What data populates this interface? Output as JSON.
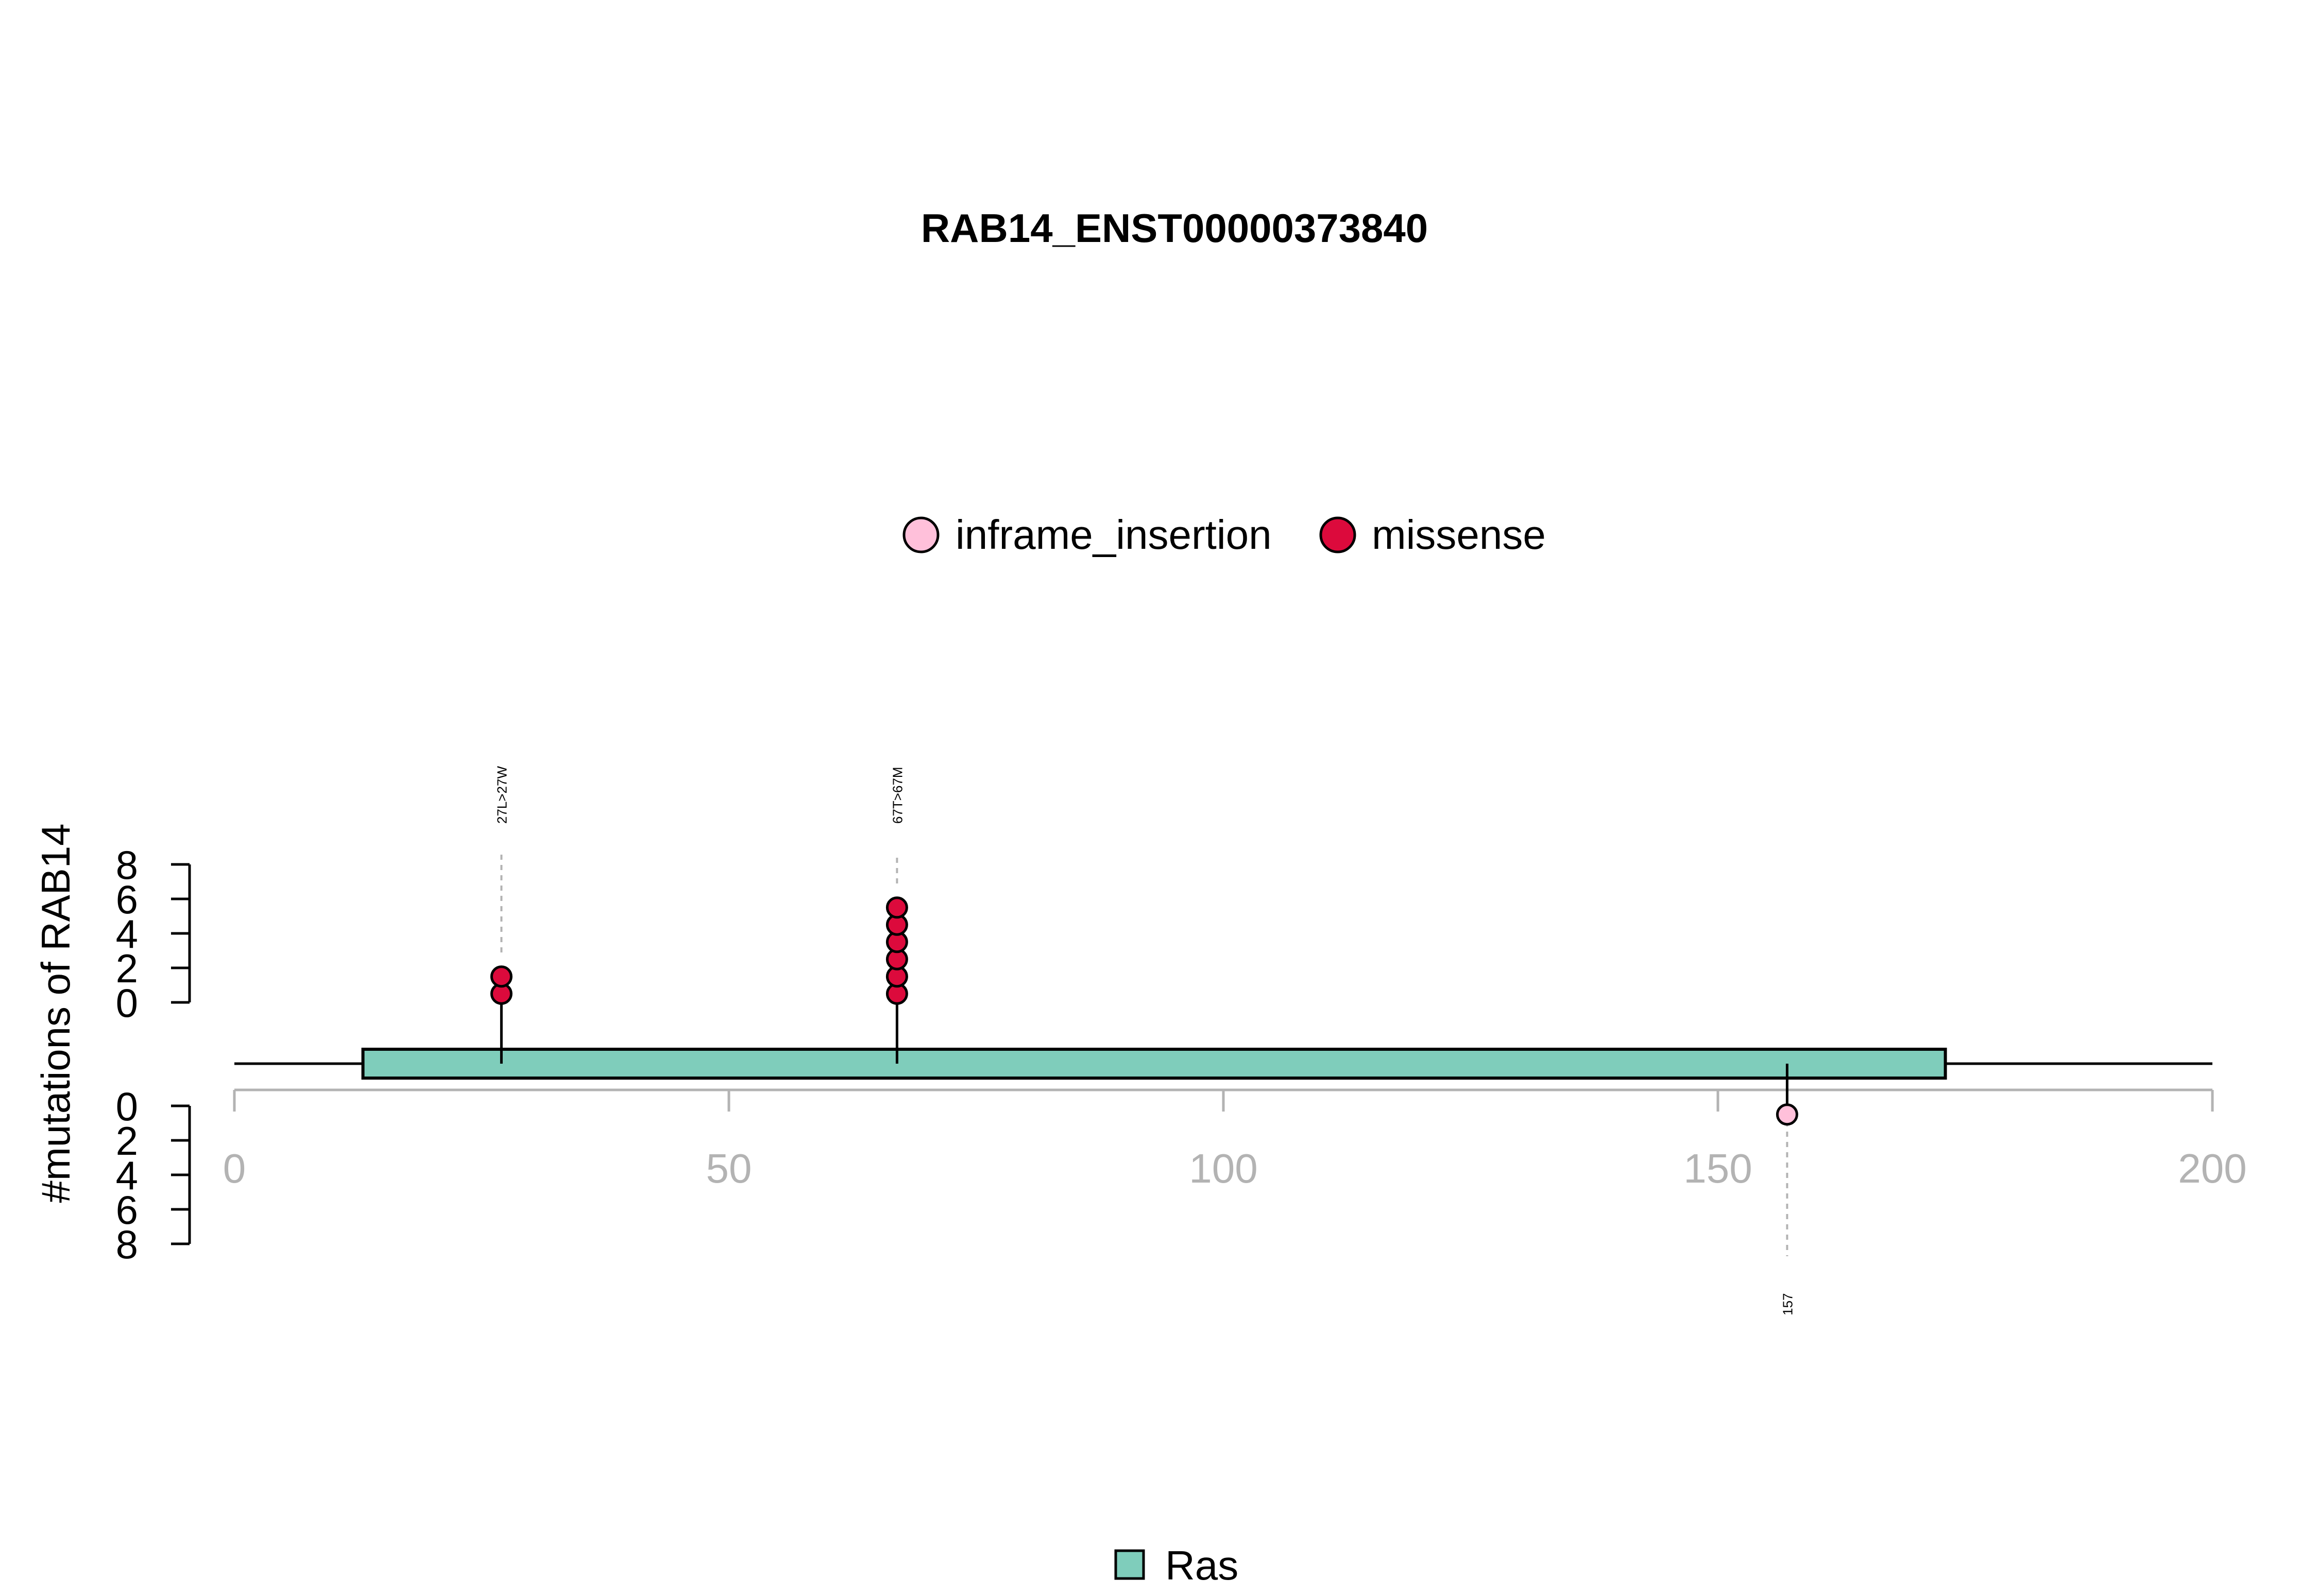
{
  "chart_data": {
    "type": "scatter",
    "title": "RAB14_ENST00000373840",
    "ylabel": "#mutations of RAB14",
    "xlim": [
      0,
      200
    ],
    "x_ticks": [
      0,
      50,
      100,
      150,
      200
    ],
    "y_ticks": [
      0,
      2,
      4,
      6,
      8
    ],
    "grid": false,
    "legend_position": "top-center",
    "legend": [
      {
        "label": "inframe_insertion",
        "color": "#FFC0DA"
      },
      {
        "label": "missense",
        "color": "#DC0A3C"
      }
    ],
    "domain_legend": [
      {
        "label": "Ras",
        "color": "#7FCDBB"
      }
    ],
    "protein": {
      "length": 200,
      "domain": {
        "name": "Ras",
        "start": 13,
        "end": 173
      }
    },
    "series": [
      {
        "name": "missense",
        "side": "top",
        "color": "#DC0A3C",
        "points": [
          {
            "x": 27,
            "y": 2,
            "label": "27L>27W"
          },
          {
            "x": 67,
            "y": 6,
            "label": "67T>67M"
          }
        ]
      },
      {
        "name": "inframe_insertion",
        "side": "bottom",
        "color": "#FFC0DA",
        "points": [
          {
            "x": 157,
            "y": 1,
            "label": "157"
          }
        ]
      }
    ]
  }
}
